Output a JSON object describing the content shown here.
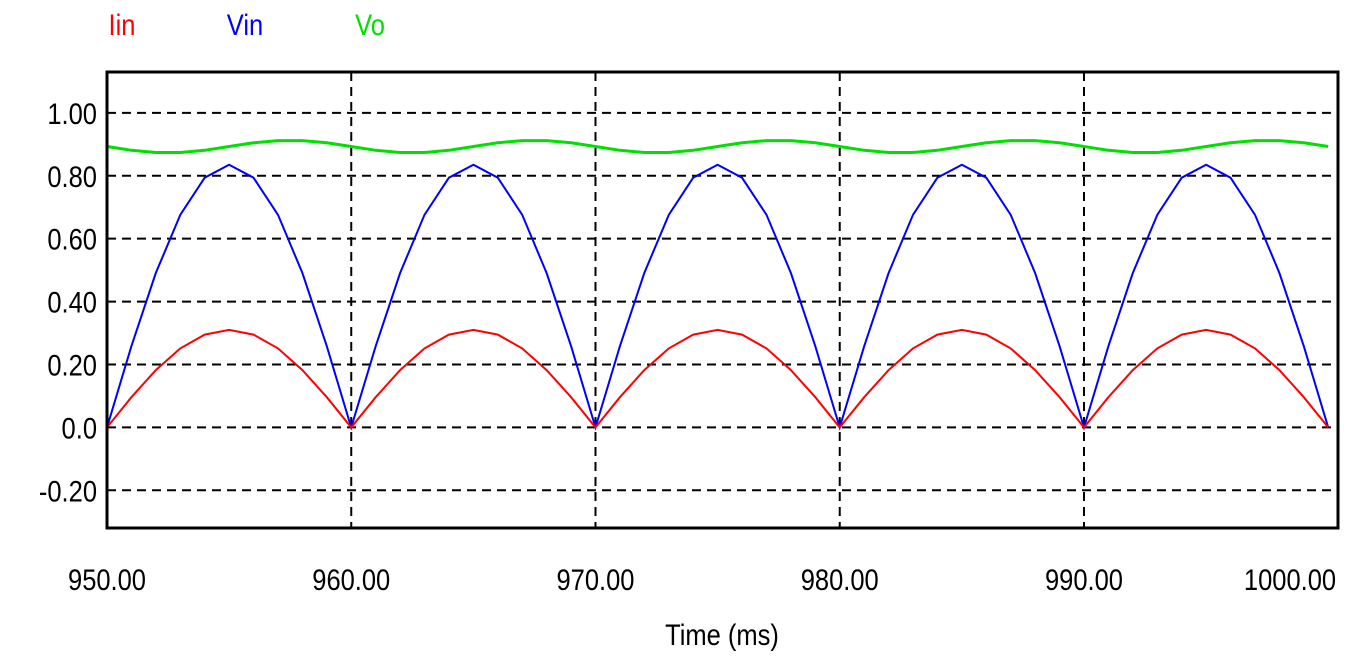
{
  "chart_data": {
    "type": "line",
    "title": "",
    "xlabel": "Time (ms)",
    "ylabel": "",
    "xlim": [
      950,
      1000.4
    ],
    "ylim": [
      -0.32,
      1.13
    ],
    "grid": true,
    "legend_placement": "top-left",
    "x_ticks": [
      950,
      960,
      970,
      980,
      990,
      1000
    ],
    "x_tick_labels": [
      "950.00",
      "960.00",
      "970.00",
      "980.00",
      "990.00",
      "1000.00"
    ],
    "y_ticks": [
      1.0,
      0.8,
      0.6,
      0.4,
      0.2,
      0.0,
      -0.2
    ],
    "y_tick_labels": [
      "1.00",
      "0.80",
      "0.60",
      "0.40",
      "0.20",
      "0.0",
      "-0.20"
    ],
    "x": [
      950,
      951,
      952,
      953,
      954,
      955,
      956,
      957,
      958,
      959,
      960,
      961,
      962,
      963,
      964,
      965,
      966,
      967,
      968,
      969,
      970,
      971,
      972,
      973,
      974,
      975,
      976,
      977,
      978,
      979,
      980,
      981,
      982,
      983,
      984,
      985,
      986,
      987,
      988,
      989,
      990,
      991,
      992,
      993,
      994,
      995,
      996,
      997,
      998,
      999,
      1000
    ],
    "series": [
      {
        "name": "Iin",
        "color": "#ff0000",
        "values": [
          0,
          0.096,
          0.182,
          0.251,
          0.295,
          0.31,
          0.295,
          0.251,
          0.182,
          0.096,
          0,
          0.096,
          0.182,
          0.251,
          0.295,
          0.31,
          0.295,
          0.251,
          0.182,
          0.096,
          0,
          0.096,
          0.182,
          0.251,
          0.295,
          0.31,
          0.295,
          0.251,
          0.182,
          0.096,
          0,
          0.096,
          0.182,
          0.251,
          0.295,
          0.31,
          0.295,
          0.251,
          0.182,
          0.096,
          0,
          0.096,
          0.182,
          0.251,
          0.295,
          0.31,
          0.295,
          0.251,
          0.182,
          0.096,
          0
        ]
      },
      {
        "name": "Vin",
        "color": "#0000ff",
        "values": [
          0,
          0.258,
          0.491,
          0.676,
          0.794,
          0.835,
          0.794,
          0.676,
          0.491,
          0.258,
          0,
          0.258,
          0.491,
          0.676,
          0.794,
          0.835,
          0.794,
          0.676,
          0.491,
          0.258,
          0,
          0.258,
          0.491,
          0.676,
          0.794,
          0.835,
          0.794,
          0.676,
          0.491,
          0.258,
          0,
          0.258,
          0.491,
          0.676,
          0.794,
          0.835,
          0.794,
          0.676,
          0.491,
          0.258,
          0,
          0.258,
          0.491,
          0.676,
          0.794,
          0.835,
          0.794,
          0.676,
          0.491,
          0.258,
          0
        ]
      },
      {
        "name": "Vo",
        "color": "#00e000",
        "values": [
          0.893,
          0.881,
          0.874,
          0.874,
          0.881,
          0.893,
          0.905,
          0.912,
          0.912,
          0.905,
          0.893,
          0.881,
          0.874,
          0.874,
          0.881,
          0.893,
          0.905,
          0.912,
          0.912,
          0.905,
          0.893,
          0.881,
          0.874,
          0.874,
          0.881,
          0.893,
          0.905,
          0.912,
          0.912,
          0.905,
          0.893,
          0.881,
          0.874,
          0.874,
          0.881,
          0.893,
          0.905,
          0.912,
          0.912,
          0.905,
          0.893,
          0.881,
          0.874,
          0.874,
          0.881,
          0.893,
          0.905,
          0.912,
          0.912,
          0.905,
          0.893
        ]
      }
    ]
  }
}
